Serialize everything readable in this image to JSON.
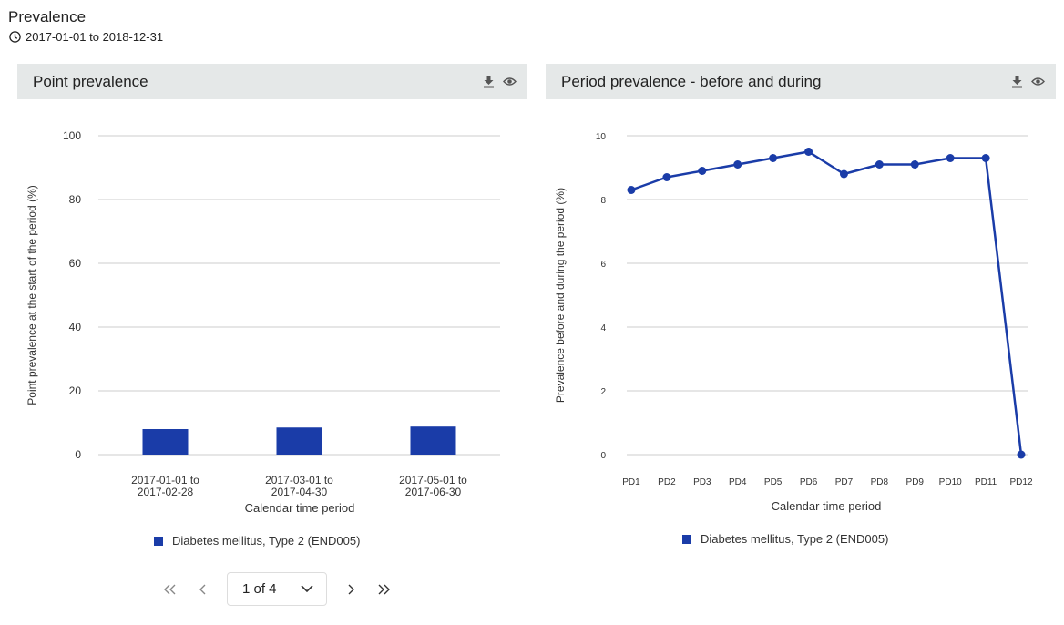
{
  "page": {
    "title": "Prevalence",
    "date_range": "2017-01-01 to 2018-12-31"
  },
  "left_panel": {
    "title": "Point prevalence",
    "legend": "Diabetes mellitus, Type 2 (END005)"
  },
  "right_panel": {
    "title": "Period prevalence - before and during",
    "legend": "Diabetes mellitus, Type 2 (END005)"
  },
  "pagination": {
    "current": "1 of 4"
  },
  "colors": {
    "series": "#1a3ca8",
    "header_bg": "#e5e8e8",
    "grid": "#cccccc"
  },
  "chart_data": [
    {
      "type": "bar",
      "title": "Point prevalence",
      "categories": [
        [
          "2017-01-01 to",
          "2017-02-28"
        ],
        [
          "2017-03-01 to",
          "2017-04-30"
        ],
        [
          "2017-05-01 to",
          "2017-06-30"
        ]
      ],
      "values": [
        8.0,
        8.5,
        8.8
      ],
      "series_name": "Diabetes mellitus, Type 2 (END005)",
      "xlabel": "Calendar time period",
      "ylabel": "Point prevalence at the start of the period (%)",
      "ylim": [
        0,
        100
      ],
      "yticks": [
        0,
        20,
        40,
        60,
        80,
        100
      ],
      "grid": true,
      "legend": "bottom"
    },
    {
      "type": "line",
      "title": "Period prevalence - before and during",
      "categories": [
        "PD1",
        "PD2",
        "PD3",
        "PD4",
        "PD5",
        "PD6",
        "PD7",
        "PD8",
        "PD9",
        "PD10",
        "PD11",
        "PD12"
      ],
      "values": [
        8.3,
        8.7,
        8.9,
        9.1,
        9.3,
        9.5,
        8.8,
        9.1,
        9.1,
        9.3,
        9.3,
        0
      ],
      "series_name": "Diabetes mellitus, Type 2 (END005)",
      "xlabel": "Calendar time period",
      "ylabel": "Prevalence before and during the period (%)",
      "ylim": [
        0,
        10
      ],
      "yticks": [
        0,
        2,
        4,
        6,
        8,
        10
      ],
      "grid": true,
      "legend": "bottom"
    }
  ]
}
